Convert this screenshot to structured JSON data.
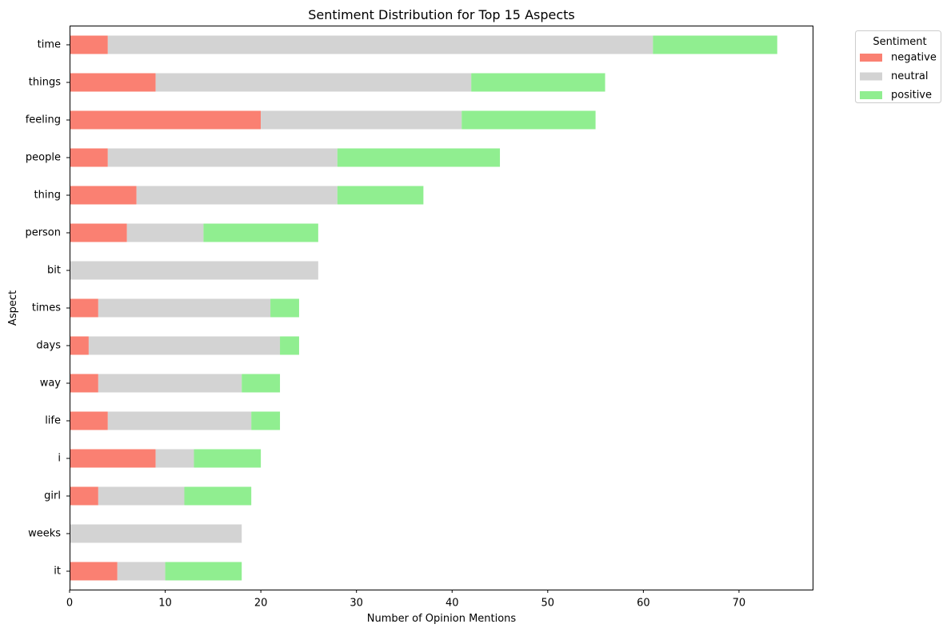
{
  "chart_data": {
    "type": "bar",
    "orientation": "horizontal",
    "stacked": true,
    "title": "Sentiment Distribution for Top 15 Aspects",
    "xlabel": "Number of Opinion Mentions",
    "ylabel": "Aspect",
    "xlim": [
      0,
      77.7
    ],
    "xticks": [
      0,
      10,
      20,
      30,
      40,
      50,
      60,
      70
    ],
    "grid": false,
    "legend": {
      "title": "Sentiment",
      "placement": "outside-top-right"
    },
    "categories": [
      "time",
      "things",
      "feeling",
      "people",
      "thing",
      "person",
      "bit",
      "times",
      "days",
      "way",
      "life",
      "i",
      "girl",
      "weeks",
      "it"
    ],
    "series": [
      {
        "name": "negative",
        "color": "#fa8072",
        "values": [
          4,
          9,
          20,
          4,
          7,
          6,
          0,
          3,
          2,
          3,
          4,
          9,
          3,
          0,
          5
        ]
      },
      {
        "name": "neutral",
        "color": "#d3d3d3",
        "values": [
          57,
          33,
          21,
          24,
          21,
          8,
          26,
          18,
          20,
          15,
          15,
          4,
          9,
          18,
          5
        ]
      },
      {
        "name": "positive",
        "color": "#90ee90",
        "values": [
          13,
          14,
          14,
          17,
          9,
          12,
          0,
          3,
          2,
          4,
          3,
          7,
          7,
          0,
          8
        ]
      }
    ]
  }
}
